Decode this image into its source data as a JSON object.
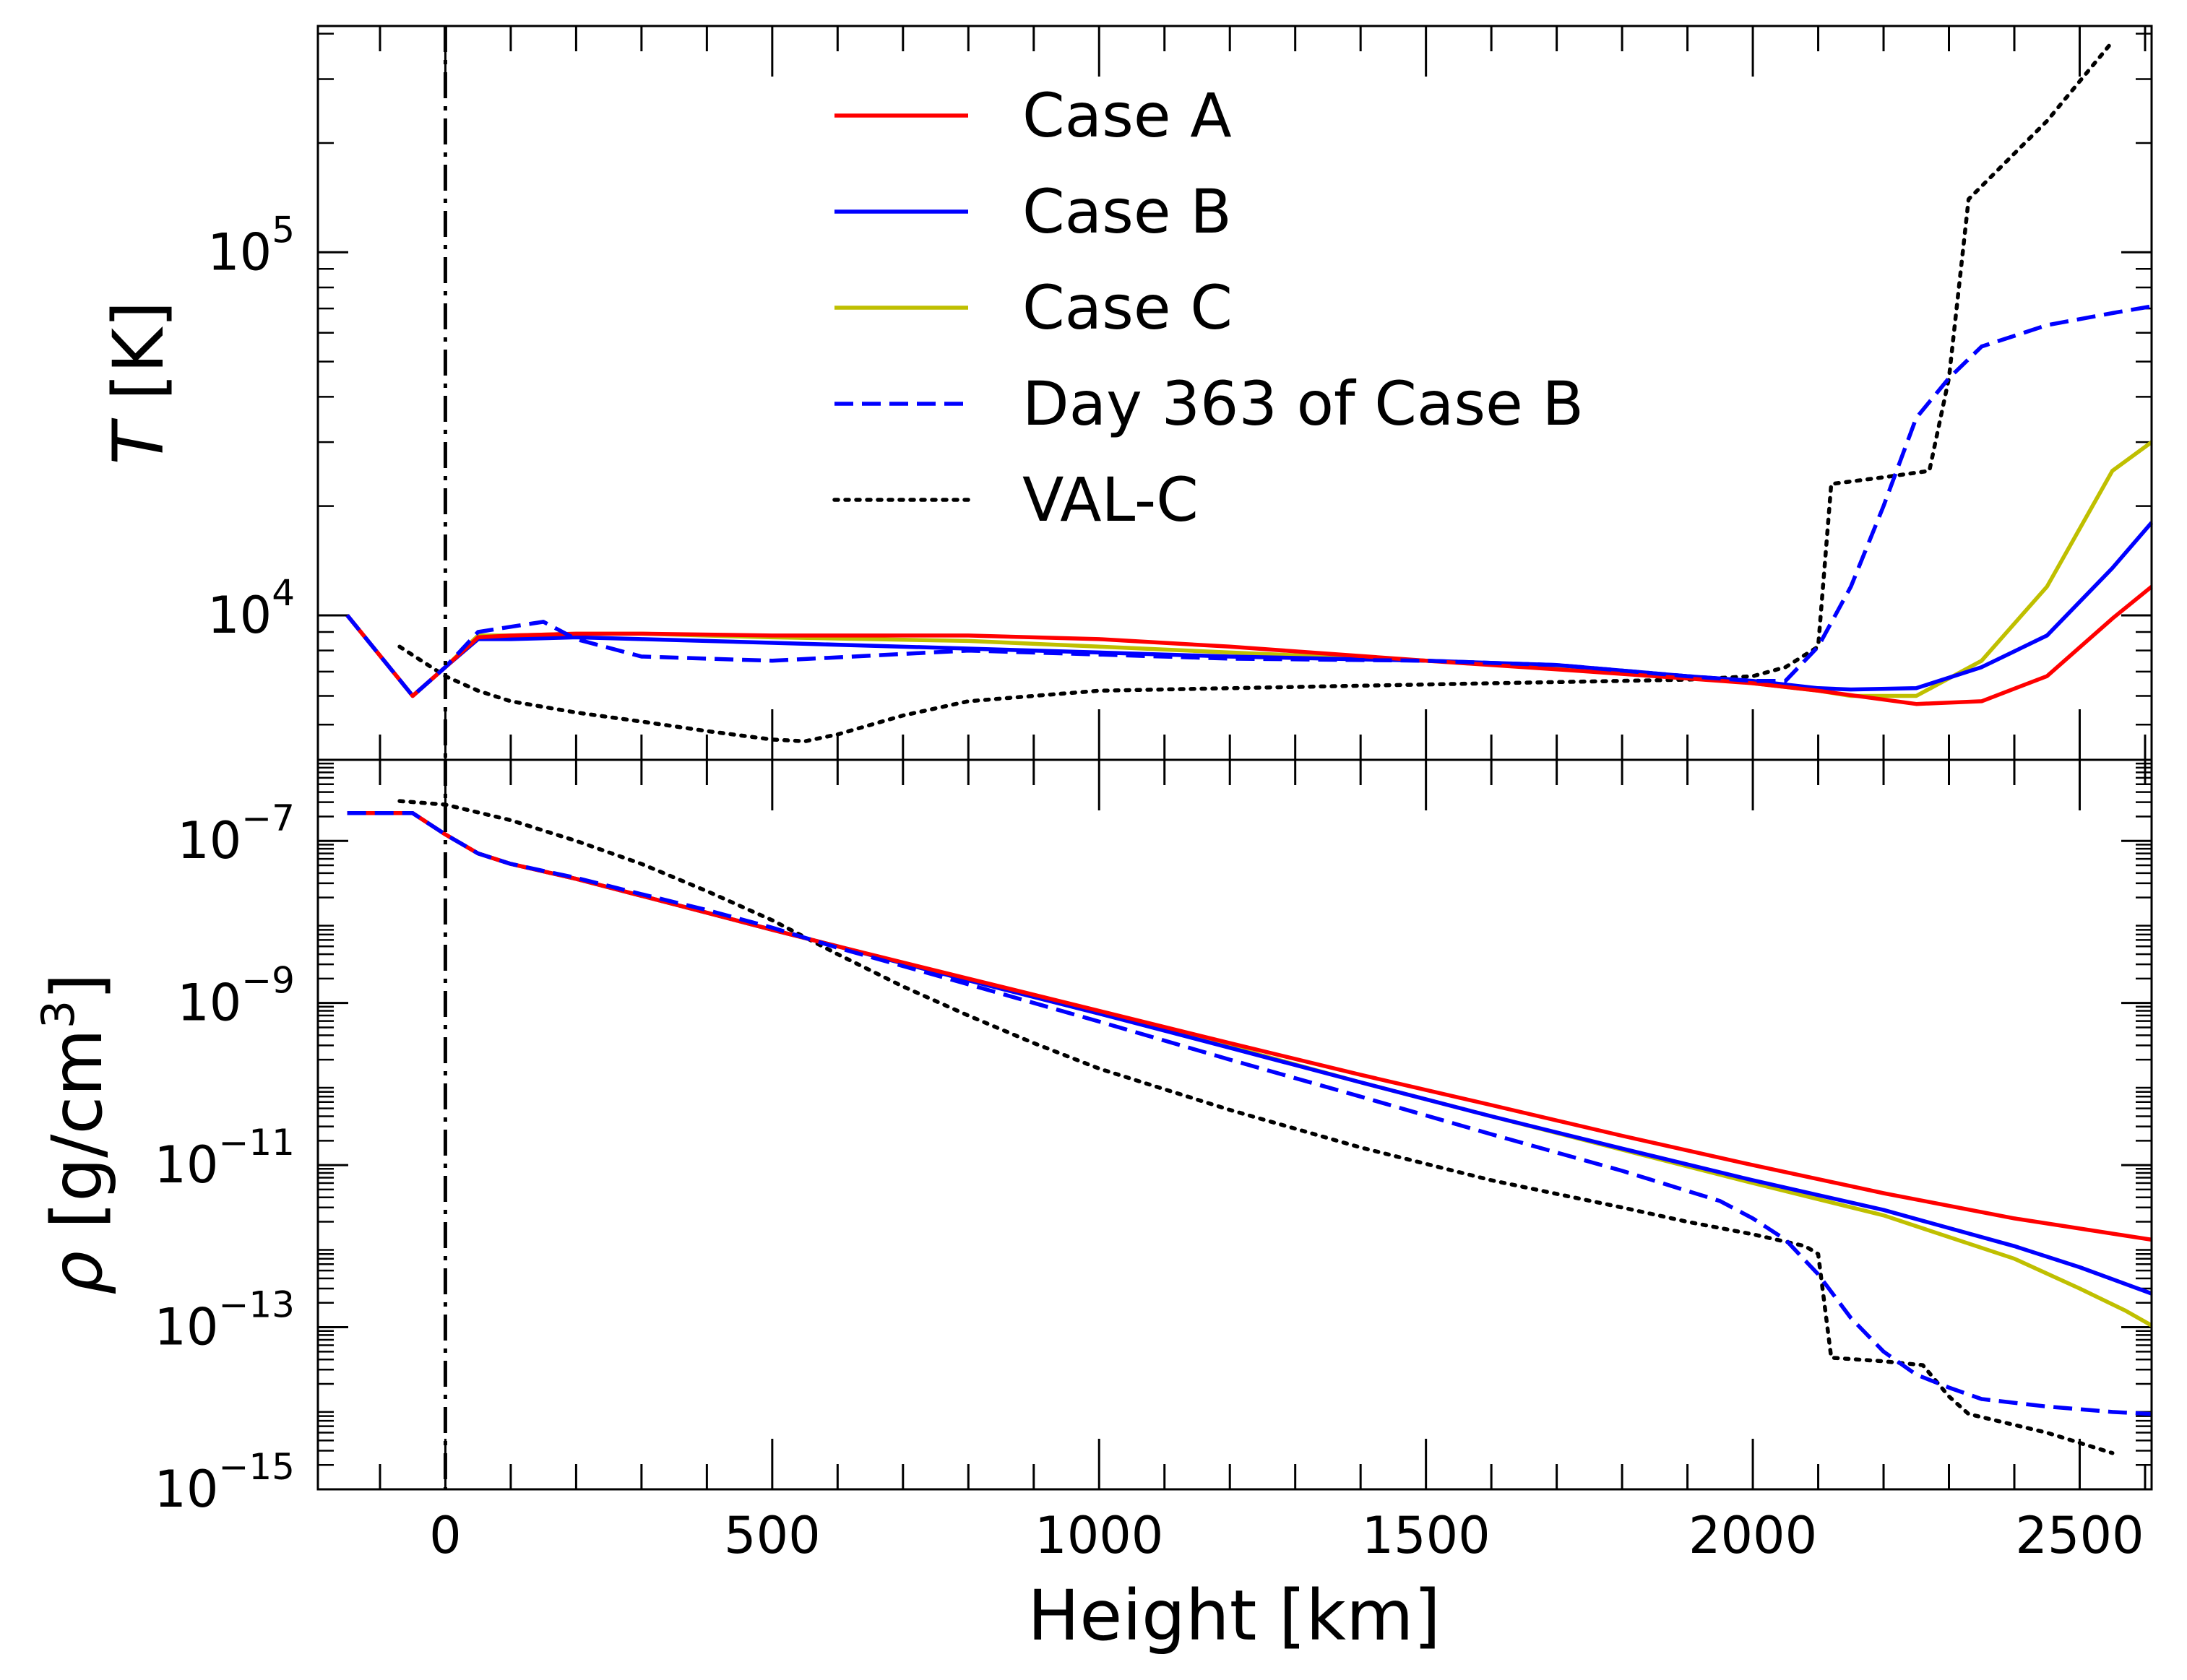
{
  "figure": {
    "xlabel": "Height [km]"
  },
  "chart_data": [
    {
      "type": "line",
      "panel": "top",
      "yscale": "log",
      "ylabel_symbol": "T",
      "ylabel_unit": " [K]",
      "xlim": [
        -195,
        2610
      ],
      "ylim": [
        4000,
        420000
      ],
      "xticks": [
        0,
        500,
        1000,
        1500,
        2000,
        2500
      ],
      "yticks": [
        {
          "base": "10",
          "exp": "4",
          "value": 10000
        },
        {
          "base": "10",
          "exp": "5",
          "value": 100000
        }
      ],
      "reference_line_x": 0,
      "legend": {
        "placement": "upper-center"
      },
      "series": [
        {
          "key": "A",
          "name": "Case A",
          "color": "#ff0000",
          "style": "solid",
          "x": [
            -150,
            -50,
            0,
            50,
            100,
            200,
            300,
            500,
            800,
            1000,
            1200,
            1500,
            1700,
            1900,
            2000,
            2100,
            2250,
            2350,
            2450,
            2550,
            2610
          ],
          "y": [
            10000,
            6000,
            7200,
            8700,
            8800,
            8900,
            8900,
            8800,
            8800,
            8600,
            8200,
            7500,
            7100,
            6700,
            6500,
            6200,
            5700,
            5800,
            6800,
            9800,
            12000
          ]
        },
        {
          "key": "B",
          "name": "Case B",
          "color": "#0000ff",
          "style": "solid",
          "x": [
            -150,
            -50,
            0,
            50,
            100,
            200,
            300,
            500,
            800,
            1000,
            1200,
            1500,
            1700,
            1900,
            2000,
            2100,
            2150,
            2250,
            2350,
            2450,
            2550,
            2610
          ],
          "y": [
            10000,
            6000,
            7200,
            8600,
            8600,
            8700,
            8600,
            8400,
            8100,
            7900,
            7700,
            7500,
            7300,
            6800,
            6600,
            6300,
            6250,
            6300,
            7200,
            8800,
            13500,
            18000
          ]
        },
        {
          "key": "C",
          "name": "Case C",
          "color": "#bfbf00",
          "style": "solid",
          "x": [
            -150,
            -50,
            0,
            50,
            100,
            200,
            300,
            500,
            800,
            1000,
            1200,
            1500,
            1700,
            1900,
            2000,
            2100,
            2150,
            2250,
            2350,
            2450,
            2550,
            2610
          ],
          "y": [
            10000,
            6000,
            7200,
            8800,
            8800,
            8900,
            8900,
            8700,
            8500,
            8200,
            7900,
            7500,
            7200,
            6800,
            6500,
            6200,
            6000,
            6000,
            7500,
            12000,
            25000,
            30000
          ]
        },
        {
          "key": "D",
          "name": "Day 363 of Case B",
          "color": "#0000ff",
          "style": "dashed",
          "x": [
            -150,
            -50,
            0,
            50,
            100,
            150,
            200,
            300,
            500,
            800,
            1000,
            1200,
            1500,
            1700,
            1900,
            2000,
            2050,
            2100,
            2150,
            2200,
            2250,
            2300,
            2350,
            2450,
            2550,
            2610
          ],
          "y": [
            10000,
            6000,
            7200,
            9000,
            9300,
            9600,
            8600,
            7700,
            7500,
            8000,
            7800,
            7600,
            7500,
            7300,
            6800,
            6600,
            6600,
            8200,
            12000,
            20000,
            35000,
            45000,
            55000,
            63000,
            68000,
            71000
          ]
        },
        {
          "key": "V",
          "name": "VAL-C",
          "color": "#000000",
          "style": "dotted",
          "x": [
            -70,
            0,
            50,
            100,
            200,
            300,
            400,
            500,
            550,
            600,
            700,
            800,
            900,
            1000,
            1200,
            1400,
            1600,
            1800,
            1900,
            2000,
            2050,
            2100,
            2120,
            2200,
            2270,
            2300,
            2330,
            2450,
            2550
          ],
          "y": [
            8200,
            6800,
            6200,
            5800,
            5400,
            5100,
            4800,
            4550,
            4500,
            4700,
            5300,
            5800,
            6000,
            6200,
            6300,
            6400,
            6500,
            6600,
            6650,
            6800,
            7200,
            8200,
            23000,
            24000,
            25000,
            45000,
            140000,
            230000,
            380000
          ]
        }
      ]
    },
    {
      "type": "line",
      "panel": "bottom",
      "yscale": "log",
      "ylabel_symbol": "ρ",
      "ylabel_unit": " [g/cm",
      "ylabel_exp": "3",
      "ylabel_tail": "]",
      "xlim": [
        -195,
        2610
      ],
      "ylim": [
        1e-15,
        1e-06
      ],
      "xticks": [
        0,
        500,
        1000,
        1500,
        2000,
        2500
      ],
      "xtick_labels": [
        "0",
        "500",
        "1000",
        "1500",
        "2000",
        "2500"
      ],
      "yticks": [
        {
          "base": "10",
          "exp": "−7",
          "value": 1e-07
        },
        {
          "base": "10",
          "exp": "−9",
          "value": 1e-09
        },
        {
          "base": "10",
          "exp": "−11",
          "value": 1e-11
        },
        {
          "base": "10",
          "exp": "−13",
          "value": 1e-13
        },
        {
          "base": "10",
          "exp": "−15",
          "value": 1e-15
        }
      ],
      "reference_line_x": 0,
      "series": [
        {
          "key": "A",
          "name": "Case A",
          "color": "#ff0000",
          "style": "solid",
          "x": [
            -150,
            -50,
            0,
            50,
            100,
            200,
            300,
            400,
            500,
            600,
            800,
            1000,
            1200,
            1400,
            1600,
            1800,
            2000,
            2200,
            2400,
            2610
          ],
          "y": [
            2.2e-07,
            2.2e-07,
            1.2e-07,
            7e-08,
            5.2e-08,
            3.4e-08,
            2.1e-08,
            1.3e-08,
            8e-09,
            5e-09,
            2e-09,
            8e-10,
            3.2e-10,
            1.3e-10,
            5.5e-11,
            2.3e-11,
            1e-11,
            4.5e-12,
            2.2e-12,
            1.2e-12
          ]
        },
        {
          "key": "B",
          "name": "Case B",
          "color": "#0000ff",
          "style": "solid",
          "x": [
            -150,
            -50,
            0,
            50,
            100,
            200,
            300,
            400,
            500,
            600,
            800,
            1000,
            1200,
            1400,
            1600,
            1800,
            2000,
            2200,
            2400,
            2500,
            2610
          ],
          "y": [
            2.2e-07,
            2.2e-07,
            1.2e-07,
            7e-08,
            5.2e-08,
            3.4e-08,
            2.1e-08,
            1.3e-08,
            8e-09,
            5e-09,
            1.9e-09,
            7.4e-10,
            2.8e-10,
            1.05e-10,
            4e-11,
            1.6e-11,
            6.5e-12,
            2.8e-12,
            1e-12,
            5.5e-13,
            2.6e-13
          ]
        },
        {
          "key": "C",
          "name": "Case C",
          "color": "#bfbf00",
          "style": "solid",
          "x": [
            -150,
            -50,
            0,
            50,
            100,
            200,
            300,
            400,
            500,
            600,
            800,
            1000,
            1200,
            1400,
            1600,
            1800,
            2000,
            2200,
            2400,
            2500,
            2570,
            2610
          ],
          "y": [
            2.2e-07,
            2.2e-07,
            1.2e-07,
            7e-08,
            5.2e-08,
            3.4e-08,
            2.1e-08,
            1.3e-08,
            8e-09,
            5e-09,
            1.9e-09,
            7.4e-10,
            2.9e-10,
            1.05e-10,
            4e-11,
            1.55e-11,
            6e-12,
            2.4e-12,
            7e-13,
            3e-13,
            1.6e-13,
            1.05e-13
          ]
        },
        {
          "key": "D",
          "name": "Day 363 of Case B",
          "color": "#0000ff",
          "style": "dashed",
          "x": [
            -150,
            -50,
            0,
            50,
            100,
            200,
            300,
            400,
            500,
            600,
            800,
            1000,
            1200,
            1400,
            1600,
            1800,
            1900,
            1950,
            2000,
            2050,
            2100,
            2150,
            2200,
            2250,
            2300,
            2350,
            2450,
            2550,
            2610
          ],
          "y": [
            2.2e-07,
            2.2e-07,
            1.2e-07,
            7e-08,
            5.2e-08,
            3.5e-08,
            2.2e-08,
            1.4e-08,
            8.5e-09,
            4.8e-09,
            1.7e-09,
            5.9e-10,
            2e-10,
            7e-11,
            2.4e-11,
            8.5e-12,
            4.8e-12,
            3.6e-12,
            2.2e-12,
            1.2e-12,
            4.5e-13,
            1.3e-13,
            5e-14,
            2.6e-14,
            1.8e-14,
            1.3e-14,
            1.05e-14,
            9e-15,
            8.5e-15
          ]
        },
        {
          "key": "V",
          "name": "VAL-C",
          "color": "#000000",
          "style": "dotted",
          "x": [
            -70,
            0,
            100,
            200,
            300,
            400,
            500,
            600,
            700,
            800,
            900,
            1000,
            1200,
            1400,
            1600,
            1800,
            1900,
            2000,
            2080,
            2100,
            2120,
            2200,
            2260,
            2300,
            2330,
            2450,
            2550
          ],
          "y": [
            3.1e-07,
            2.8e-07,
            1.8e-07,
            1e-07,
            5.2e-08,
            2.4e-08,
            1.05e-08,
            4e-09,
            1.6e-09,
            7e-10,
            3.2e-10,
            1.55e-10,
            4.8e-11,
            1.65e-11,
            6.5e-12,
            3e-12,
            2e-12,
            1.4e-12,
            1e-12,
            8e-13,
            4.2e-14,
            3.8e-14,
            3.4e-14,
            1.4e-14,
            8.5e-15,
            5e-15,
            2.8e-15
          ]
        }
      ]
    }
  ]
}
